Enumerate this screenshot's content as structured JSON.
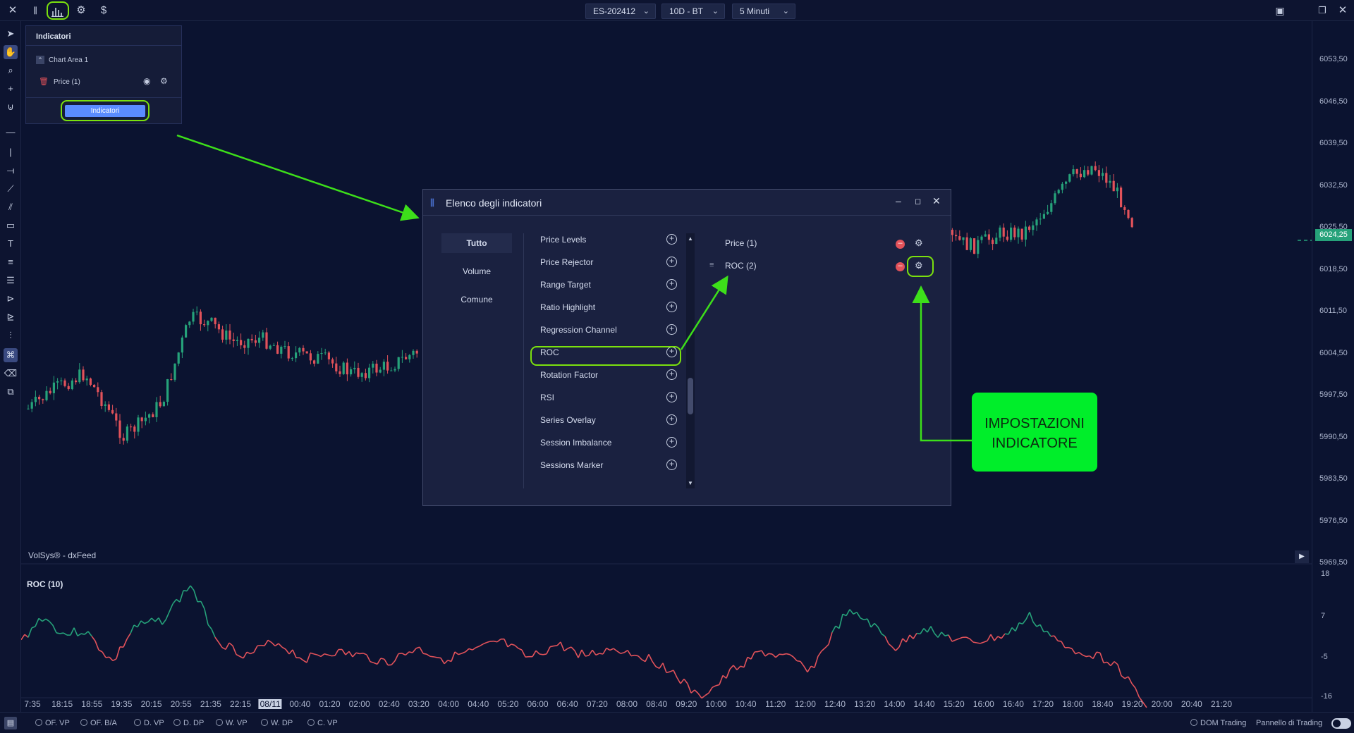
{
  "top_bar": {
    "symbol": "ES-202412",
    "period": "10D - BT",
    "timeframe": "5 Minuti"
  },
  "indicator_panel": {
    "title": "Indicatori",
    "chart_area": "Chart Area 1",
    "price_row": "Price (1)",
    "button": "Indicatori"
  },
  "dialog": {
    "title": "Elenco degli indicatori",
    "tabs": [
      "Tutto",
      "Volume",
      "Comune"
    ],
    "items": [
      "Price Levels",
      "Price Rejector",
      "Range Target",
      "Ratio Highlight",
      "Regression Channel",
      "ROC",
      "Rotation Factor",
      "RSI",
      "Series Overlay",
      "Session Imbalance",
      "Sessions Marker"
    ],
    "active": [
      "Price (1)",
      "ROC (2)"
    ]
  },
  "callout": {
    "line1": "IMPOSTAZIONI",
    "line2": "INDICATORE"
  },
  "chart": {
    "source": "VolSys® - dxFeed",
    "current_price": "6024,25",
    "price_labels": [
      "6053,50",
      "6046,50",
      "6039,50",
      "6032,50",
      "6025,50",
      "6018,50",
      "6011,50",
      "6004,50",
      "5997,50",
      "5990,50",
      "5983,50",
      "5976,50",
      "5969,50"
    ],
    "subchart_title": "ROC (10)",
    "roc_labels": [
      "18",
      "7",
      "-5",
      "-16"
    ],
    "time_labels": [
      "7:35",
      "18:15",
      "18:55",
      "19:35",
      "20:15",
      "20:55",
      "21:35",
      "22:15",
      "08/11",
      "00:40",
      "01:20",
      "02:00",
      "02:40",
      "03:20",
      "04:00",
      "04:40",
      "05:20",
      "06:00",
      "06:40",
      "07:20",
      "08:00",
      "08:40",
      "09:20",
      "10:00",
      "10:40",
      "11:20",
      "12:00",
      "12:40",
      "13:20",
      "14:00",
      "14:40",
      "15:20",
      "16:00",
      "16:40",
      "17:20",
      "18:00",
      "18:40",
      "19:20",
      "20:00",
      "20:40",
      "21:20"
    ]
  },
  "bottom_bar": {
    "options": [
      "OF. VP",
      "OF. B/A",
      "D. VP",
      "D. DP",
      "W. VP",
      "W. DP",
      "C. VP"
    ],
    "dom": "DOM Trading",
    "panel": "Pannello di Trading"
  },
  "colors": {
    "up": "#26a27a",
    "down": "#e2525a",
    "accent": "#7be10e",
    "button": "#5a8cff",
    "callout": "#00ee2a"
  }
}
